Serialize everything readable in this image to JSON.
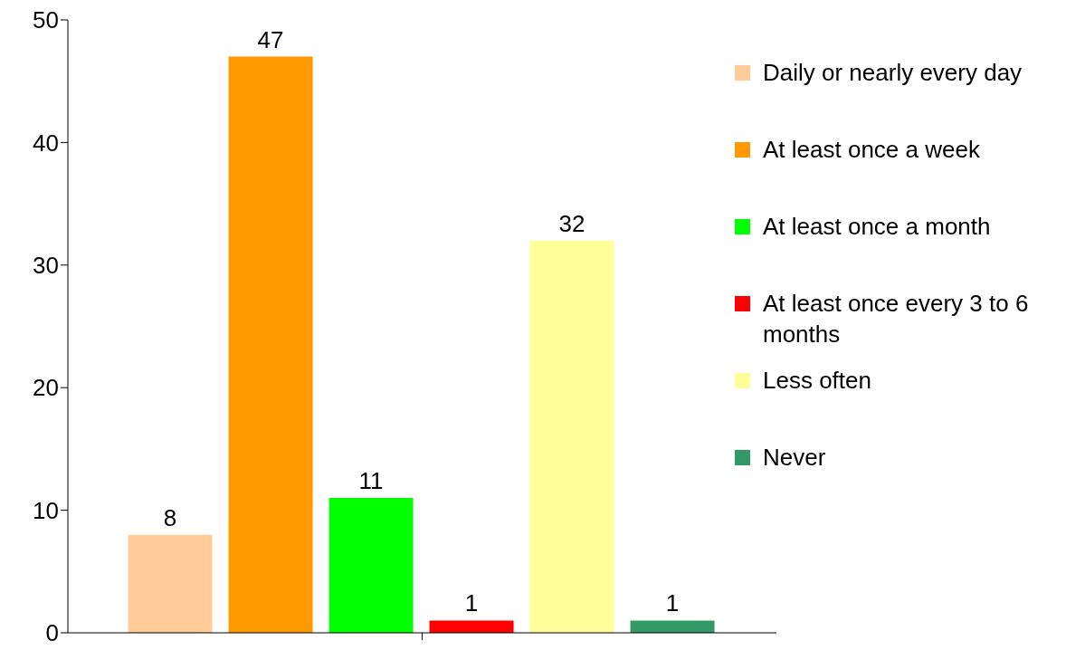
{
  "chart_data": {
    "type": "bar",
    "categories": [
      null
    ],
    "series": [
      {
        "name": "Daily or nearly every day",
        "color": "#ffcc99",
        "values": [
          8
        ]
      },
      {
        "name": "At least once a week",
        "color": "#ff9900",
        "values": [
          47
        ]
      },
      {
        "name": "At least once a month",
        "color": "#00ff00",
        "values": [
          11
        ]
      },
      {
        "name": "At least once every 3 to 6 months",
        "color": "#ff0000",
        "values": [
          1
        ]
      },
      {
        "name": "Less often",
        "color": "#ffff99",
        "values": [
          32
        ]
      },
      {
        "name": "Never",
        "color": "#339966",
        "values": [
          1
        ]
      }
    ],
    "ylim": [
      0,
      50
    ],
    "yticks": [
      0,
      10,
      20,
      30,
      40,
      50
    ],
    "grid": false,
    "legend": "right",
    "data_labels": true
  }
}
